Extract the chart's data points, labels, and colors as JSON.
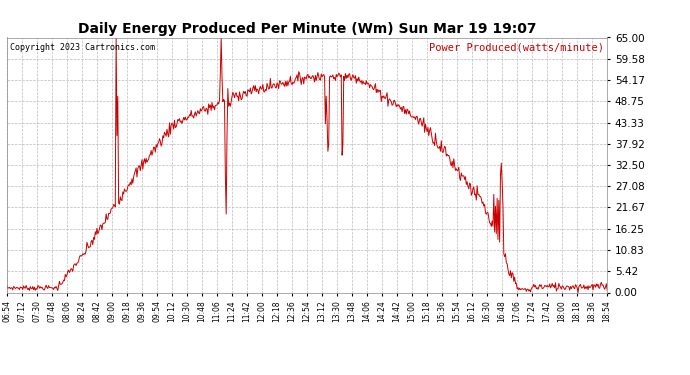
{
  "title": "Daily Energy Produced Per Minute (Wm) Sun Mar 19 19:07",
  "copyright": "Copyright 2023 Cartronics.com",
  "legend_label": "Power Produced(watts/minute)",
  "y_ticks": [
    0.0,
    5.42,
    10.83,
    16.25,
    21.67,
    27.08,
    32.5,
    37.92,
    43.33,
    48.75,
    54.17,
    59.58,
    65.0
  ],
  "y_max": 65.0,
  "y_min": 0.0,
  "line_color": "#cc0000",
  "background_color": "#ffffff",
  "grid_color": "#bbbbbb",
  "title_color": "#000000",
  "copyright_color": "#000000",
  "legend_color": "#cc0000",
  "x_tick_labels": [
    "06:54",
    "07:12",
    "07:30",
    "07:48",
    "08:06",
    "08:24",
    "08:42",
    "09:00",
    "09:18",
    "09:36",
    "09:54",
    "10:12",
    "10:30",
    "10:48",
    "11:06",
    "11:24",
    "11:42",
    "12:00",
    "12:18",
    "12:36",
    "12:54",
    "13:12",
    "13:30",
    "13:48",
    "14:06",
    "14:24",
    "14:42",
    "15:00",
    "15:18",
    "15:36",
    "15:54",
    "16:12",
    "16:30",
    "16:48",
    "17:06",
    "17:24",
    "17:42",
    "18:00",
    "18:18",
    "18:36",
    "18:54"
  ]
}
